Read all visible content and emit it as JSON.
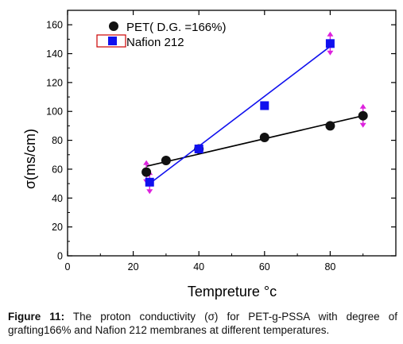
{
  "chart_data": {
    "type": "scatter",
    "xlabel": "Tempreture °c",
    "ylabel": "σ(ms/cm)",
    "xlim": [
      0,
      100
    ],
    "ylim": [
      0,
      170
    ],
    "x_ticks": [
      "0",
      "20",
      "40",
      "60",
      "80"
    ],
    "y_ticks": [
      "0",
      "20",
      "40",
      "60",
      "80",
      "100",
      "120",
      "140",
      "160"
    ],
    "legend_position": "top-left",
    "grid": false,
    "series": [
      {
        "name": "PET( D.G. =166%)",
        "marker": "circle",
        "color": "#000000",
        "x": [
          24,
          30,
          40,
          60,
          80,
          90
        ],
        "y": [
          58,
          66,
          74,
          82,
          90,
          97
        ],
        "fit": {
          "x": [
            24,
            90
          ],
          "y": [
            62,
            97
          ]
        }
      },
      {
        "name": "Nafion 212",
        "marker": "square",
        "color": "#1010ee",
        "x": [
          25,
          40,
          60,
          80
        ],
        "y": [
          51,
          74,
          104,
          147
        ],
        "fit": {
          "x": [
            25,
            80
          ],
          "y": [
            50,
            145
          ]
        }
      }
    ],
    "error_markers_color": "#dd22dd"
  },
  "caption": {
    "label": "Figure 11:",
    "text": " The proton conductivity (σ) for PET-g-PSSA with degree of grafting166% and Nafion 212 membranes at different temperatures."
  }
}
